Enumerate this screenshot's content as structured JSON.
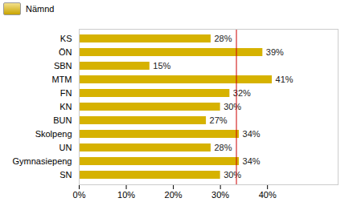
{
  "chart_data": {
    "type": "bar",
    "title": "Nämnd",
    "orientation": "horizontal",
    "categories": [
      "KS",
      "ÖN",
      "SBN",
      "MTM",
      "FN",
      "KN",
      "BUN",
      "Skolpeng",
      "UN",
      "Gymnasiepeng",
      "SN"
    ],
    "values": [
      28,
      39,
      15,
      41,
      32,
      30,
      27,
      34,
      28,
      34,
      30
    ],
    "value_labels": [
      "28%",
      "39%",
      "15%",
      "41%",
      "32%",
      "30%",
      "27%",
      "34%",
      "28%",
      "34%",
      "30%"
    ],
    "data_labels": true,
    "color": "#d6b200",
    "xlim": [
      0,
      55
    ],
    "xticks": [
      {
        "value": 0,
        "label": "0%"
      },
      {
        "value": 10,
        "label": "10%"
      },
      {
        "value": 20,
        "label": "20%"
      },
      {
        "value": 30,
        "label": "30%"
      },
      {
        "value": 40,
        "label": "40%"
      }
    ],
    "reference_line": 33.4,
    "grid": false
  }
}
